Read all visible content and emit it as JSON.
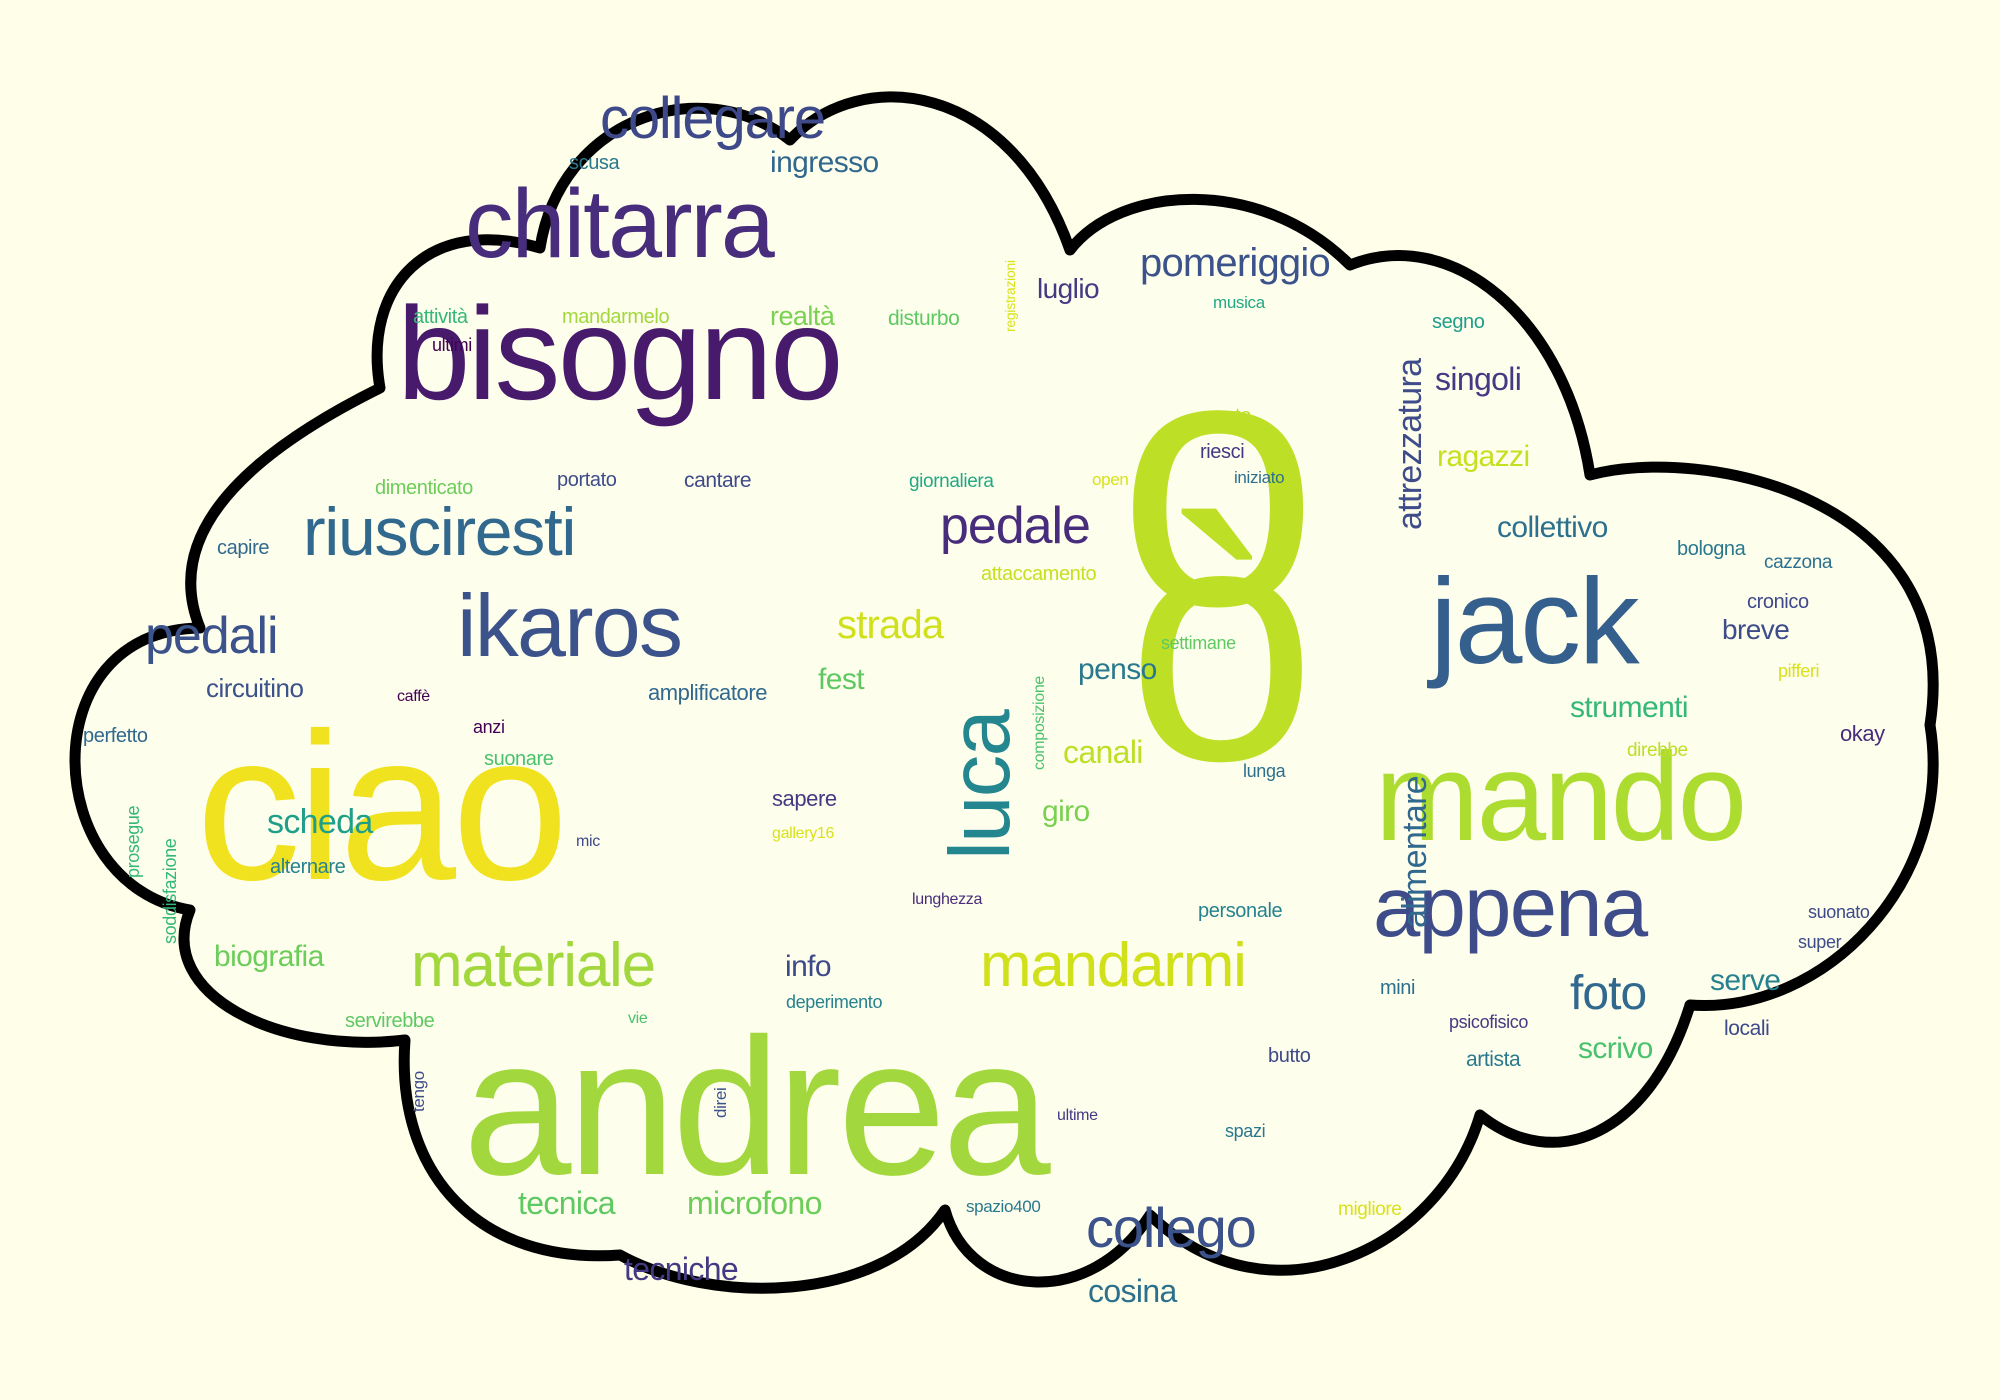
{
  "colors": {
    "background": "#fefee9",
    "cloud_fill": "#fefeed",
    "cloud_outline": "#000000"
  },
  "words": [
    {
      "text": "andrea",
      "color": "#a2d83d"
    },
    {
      "text": "ciao",
      "color": "#f1e21f"
    },
    {
      "text": "o",
      "color": "#bddf26"
    },
    {
      "text": "bisogno",
      "color": "#481a6c"
    },
    {
      "text": "ò",
      "color": "#bddf26"
    },
    {
      "text": "chitarra",
      "color": "#472d7b"
    },
    {
      "text": "mando",
      "color": "#addc30"
    },
    {
      "text": "jack",
      "color": "#35608d"
    },
    {
      "text": "appena",
      "color": "#3e4c8a"
    },
    {
      "text": "luca",
      "color": "#24868e"
    },
    {
      "text": "ikaros",
      "color": "#3b528b"
    },
    {
      "text": "riusciresti",
      "color": "#31688e"
    },
    {
      "text": "materiale",
      "color": "#a2d83d"
    },
    {
      "text": "mandarmi",
      "color": "#d0e11c"
    },
    {
      "text": "collegare",
      "color": "#3e4989"
    },
    {
      "text": "collego",
      "color": "#3b528b"
    },
    {
      "text": "pedali",
      "color": "#3b528b"
    },
    {
      "text": "pedale",
      "color": "#472d7b"
    },
    {
      "text": "foto",
      "color": "#31688e"
    },
    {
      "text": "pomeriggio",
      "color": "#3b528b"
    },
    {
      "text": "strada",
      "color": "#d0e11c"
    },
    {
      "text": "scheda",
      "color": "#1f9e89"
    },
    {
      "text": "microfono",
      "color": "#6ccd5a"
    },
    {
      "text": "tecnica",
      "color": "#5ec962"
    },
    {
      "text": "tecniche",
      "color": "#443983"
    },
    {
      "text": "strumenti",
      "color": "#35b779"
    },
    {
      "text": "ingresso",
      "color": "#31688e"
    },
    {
      "text": "singoli",
      "color": "#443983"
    },
    {
      "text": "ragazzi",
      "color": "#c5e021"
    },
    {
      "text": "collettivo",
      "color": "#2d708e"
    },
    {
      "text": "alimentare",
      "color": "#31688e"
    },
    {
      "text": "attrezzatura",
      "color": "#3e4c8a"
    },
    {
      "text": "canali",
      "color": "#bddf26"
    },
    {
      "text": "fest",
      "color": "#5ec962"
    },
    {
      "text": "penso",
      "color": "#2a788e"
    },
    {
      "text": "cosina",
      "color": "#2d708e"
    },
    {
      "text": "biografia",
      "color": "#6ccd5a"
    },
    {
      "text": "serve",
      "color": "#26828e"
    },
    {
      "text": "scrivo",
      "color": "#4ac16d"
    },
    {
      "text": "giro",
      "color": "#7ad151"
    },
    {
      "text": "info",
      "color": "#3e4989"
    },
    {
      "text": "realtà",
      "color": "#7ad151"
    },
    {
      "text": "luglio",
      "color": "#443983"
    },
    {
      "text": "breve",
      "color": "#3e4c8a"
    },
    {
      "text": "circuitino",
      "color": "#3b528b"
    },
    {
      "text": "amplificatore",
      "color": "#31688e"
    },
    {
      "text": "disturbo",
      "color": "#5ec962"
    },
    {
      "text": "mandarmelo",
      "color": "#a2d83d"
    },
    {
      "text": "attività",
      "color": "#35b779"
    },
    {
      "text": "ultimi",
      "color": "#440154"
    },
    {
      "text": "scusa",
      "color": "#2a788e"
    },
    {
      "text": "registrazioni",
      "color": "#d8e219"
    },
    {
      "text": "musica",
      "color": "#22a884"
    },
    {
      "text": "segno",
      "color": "#1f9e89"
    },
    {
      "text": "sento",
      "color": "#bddf26"
    },
    {
      "text": "riesci",
      "color": "#443983"
    },
    {
      "text": "iniziato",
      "color": "#2d708e"
    },
    {
      "text": "dimenticato",
      "color": "#6ccd5a"
    },
    {
      "text": "portato",
      "color": "#3e4c8a"
    },
    {
      "text": "cantare",
      "color": "#3e4989"
    },
    {
      "text": "giornaliera",
      "color": "#22a884"
    },
    {
      "text": "open",
      "color": "#d8e219"
    },
    {
      "text": "capire",
      "color": "#31688e"
    },
    {
      "text": "attaccamento",
      "color": "#c5e021"
    },
    {
      "text": "bologna",
      "color": "#2a788e"
    },
    {
      "text": "cazzona",
      "color": "#2d708e"
    },
    {
      "text": "cronico",
      "color": "#3e4989"
    },
    {
      "text": "settimane",
      "color": "#5ec962"
    },
    {
      "text": "pifferi",
      "color": "#d8e219"
    },
    {
      "text": "composizione",
      "color": "#4ac16d"
    },
    {
      "text": "caffè",
      "color": "#440154"
    },
    {
      "text": "anzi",
      "color": "#440154"
    },
    {
      "text": "perfetto",
      "color": "#31688e"
    },
    {
      "text": "suonare",
      "color": "#4ac16d"
    },
    {
      "text": "direbbe",
      "color": "#bddf26"
    },
    {
      "text": "okay",
      "color": "#472d7b"
    },
    {
      "text": "sapere",
      "color": "#443983"
    },
    {
      "text": "gallery16",
      "color": "#d8e219"
    },
    {
      "text": "lunga",
      "color": "#2d708e"
    },
    {
      "text": "prosegue",
      "color": "#35b779"
    },
    {
      "text": "soddisfazione",
      "color": "#35b779"
    },
    {
      "text": "mic",
      "color": "#3e4989"
    },
    {
      "text": "alternare",
      "color": "#26828e"
    },
    {
      "text": "lunghezza",
      "color": "#472d7b"
    },
    {
      "text": "personale",
      "color": "#26828e"
    },
    {
      "text": "suonato",
      "color": "#3e4989"
    },
    {
      "text": "super",
      "color": "#3e4c8a"
    },
    {
      "text": "mini",
      "color": "#2d708e"
    },
    {
      "text": "deperimento",
      "color": "#26828e"
    },
    {
      "text": "servirebbe",
      "color": "#5ec962"
    },
    {
      "text": "vie",
      "color": "#4ac16d"
    },
    {
      "text": "psicofisico",
      "color": "#443983"
    },
    {
      "text": "locali",
      "color": "#3e4989"
    },
    {
      "text": "tengo",
      "color": "#3e4c8a"
    },
    {
      "text": "direi",
      "color": "#3b528b"
    },
    {
      "text": "butto",
      "color": "#3e4989"
    },
    {
      "text": "artista",
      "color": "#2a788e"
    },
    {
      "text": "ultime",
      "color": "#443983"
    },
    {
      "text": "spazi",
      "color": "#2a788e"
    },
    {
      "text": "spazio400",
      "color": "#2a788e"
    },
    {
      "text": "migliore",
      "color": "#d8e219"
    }
  ]
}
